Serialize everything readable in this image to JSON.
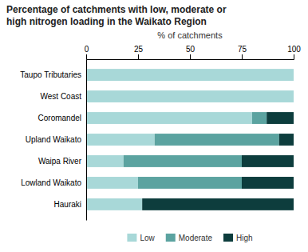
{
  "chart_data": {
    "type": "bar",
    "orientation": "horizontal",
    "stacked": true,
    "title": [
      "Percentage of catchments with low, moderate or",
      "high nitrogen loading in the Waikato Region"
    ],
    "xlabel": "% of catchments",
    "categories": [
      "Taupo Tributaries",
      "West Coast",
      "Coromandel",
      "Upland Waikato",
      "Waipa River",
      "Lowland Waikato",
      "Hauraki"
    ],
    "series": [
      {
        "name": "Low",
        "color": "#a8d8d8",
        "values": [
          100,
          100,
          80,
          33,
          18,
          25,
          27
        ]
      },
      {
        "name": "Moderate",
        "color": "#5ba3a0",
        "values": [
          0,
          0,
          7,
          60,
          57,
          50,
          0
        ]
      },
      {
        "name": "High",
        "color": "#0d3d3d",
        "values": [
          0,
          0,
          13,
          7,
          25,
          25,
          73
        ]
      }
    ],
    "xlim": [
      0,
      100
    ],
    "xticks": [
      0,
      25,
      50,
      75,
      100
    ],
    "grid": false,
    "legend": "bottom"
  }
}
